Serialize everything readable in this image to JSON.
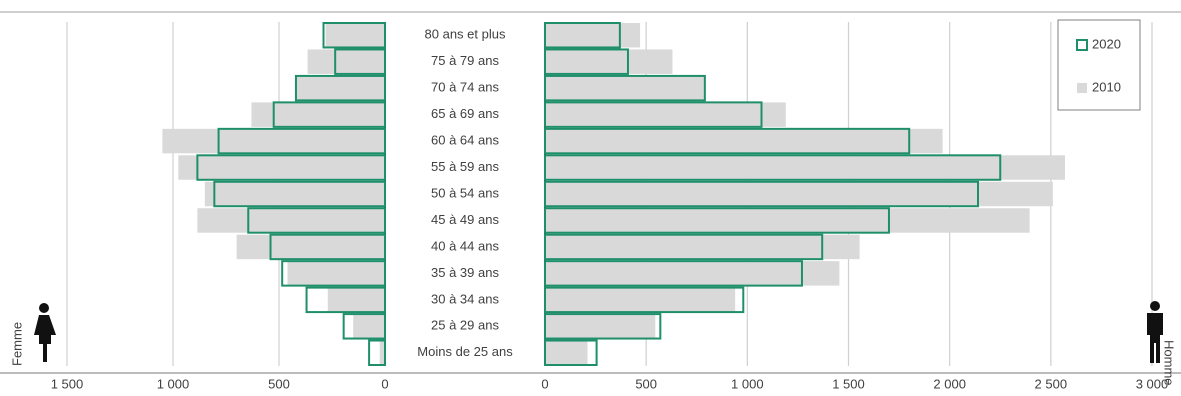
{
  "chart_data": {
    "type": "pyramid",
    "categories": [
      "80 ans et plus",
      "75 à 79 ans",
      "70 à 74 ans",
      "65 à 69 ans",
      "60 à 64 ans",
      "55 à 59 ans",
      "50 à 54 ans",
      "45 à 49 ans",
      "40 à 44 ans",
      "35 à 39 ans",
      "30 à 34 ans",
      "25 à 29 ans",
      "Moins de 25 ans"
    ],
    "panels": [
      {
        "label": "Femme",
        "reversed": true,
        "xlim": [
          0,
          1750
        ],
        "xticks": [
          0,
          500,
          {
            "value": 1000,
            "label": "1 000"
          },
          {
            "value": 1500,
            "label": "1 500"
          }
        ],
        "series": [
          {
            "name": "2020",
            "color": "#1e8f6a",
            "outline": true,
            "values": [
              290,
              235,
              420,
              525,
              785,
              885,
              805,
              645,
              540,
              485,
              370,
              195,
              75
            ]
          },
          {
            "name": "2010",
            "color": "#d9d9d9",
            "outline": false,
            "values": [
              280,
              365,
              420,
              630,
              1050,
              975,
              850,
              885,
              700,
              460,
              270,
              150,
              25
            ]
          }
        ]
      },
      {
        "label": "Homme",
        "reversed": false,
        "xlim": [
          0,
          3000
        ],
        "xticks": [
          0,
          500,
          {
            "value": 1000,
            "label": "1 000"
          },
          {
            "value": 1500,
            "label": "1 500"
          },
          {
            "value": 2000,
            "label": "2 000"
          },
          {
            "value": 2500,
            "label": "2 500"
          },
          {
            "value": 3000,
            "label": "3 000"
          }
        ],
        "series": [
          {
            "name": "2020",
            "color": "#1e8f6a",
            "outline": true,
            "values": [
              370,
              410,
              790,
              1070,
              1800,
              2250,
              2140,
              1700,
              1370,
              1270,
              980,
              570,
              255
            ]
          },
          {
            "name": "2010",
            "color": "#d9d9d9",
            "outline": false,
            "values": [
              470,
              630,
              790,
              1190,
              1965,
              2570,
              2510,
              2395,
              1555,
              1455,
              940,
              545,
              210
            ]
          }
        ]
      }
    ]
  }
}
